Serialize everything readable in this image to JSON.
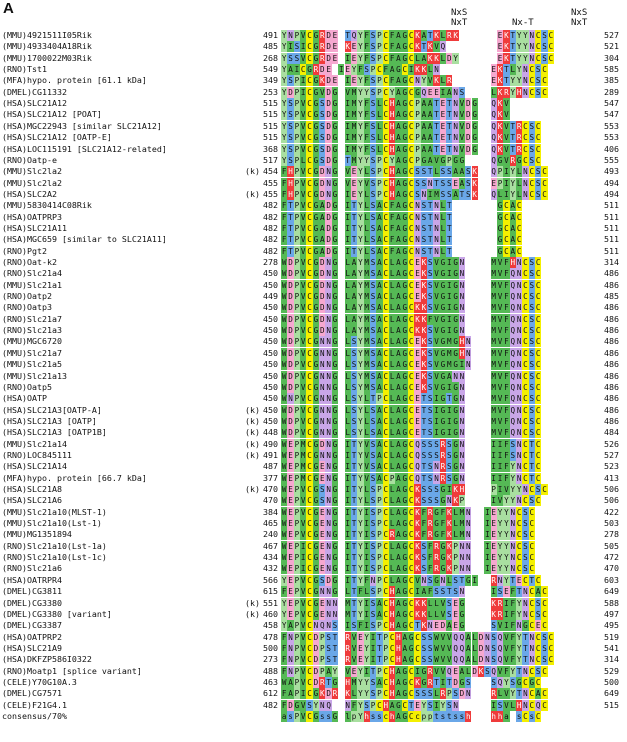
{
  "panel_label": "A",
  "motif_headers": {
    "nxs1": "NxS",
    "nxt1": "NxT",
    "nxt_mid": "Nx-T",
    "nxs2": "NxS",
    "nxt2": "NxT"
  },
  "colors": {
    "green": "#55b955",
    "yellow": "#f4f000",
    "blue": "#6aa7e8",
    "purple": "#c9a6e8",
    "pink": "#f6a8d0",
    "red": "#ef3b3b",
    "lightgreen": "#a9dfa0"
  },
  "rows": [
    {
      "name": "(MMU)4921511I05Rik",
      "k": "",
      "start": "491",
      "seq": "YNPVCGRDE TQYFSPCFAGCKATKLRK      EKTYYNCSC",
      "end": "527"
    },
    {
      "name": "(MMU)4933404A18Rik",
      "k": "",
      "start": "485",
      "seq": "YISICGRDE KEYFSPCFAGCKTKVQ        EKTYYNCSC",
      "end": "521"
    },
    {
      "name": "(MMU)1700022M03Rik",
      "k": "",
      "start": "268",
      "seq": "YSSVCGRDE IEYFSPCFAGCLAKKLDY      EKTYYNCSC",
      "end": "304"
    },
    {
      "name": "(RNO)Tst1",
      "k": "",
      "start": "549",
      "seq": "YAICGRDE IEYFSPCFAGCIKKLN        EKTLYNCSC",
      "end": "585"
    },
    {
      "name": "(MFA)hypo. protein [61.1 kDa]",
      "k": "",
      "start": "349",
      "seq": "YSPICGKDE IEYFSPCFAGCNYVKLR      EKTYYNCSC",
      "end": "385"
    },
    {
      "name": "(DMEL)CG11332",
      "k": "",
      "start": "253",
      "seq": "YDPICGVDG VMYYSPCYAGCGQEEIANS    LKRYHNCSC",
      "end": "289"
    },
    {
      "name": "(HSA)SLC21A12",
      "k": "",
      "start": "515",
      "seq": "YSPVCGSDG IMYFSLCHAGCPAATETNVDG  QKV",
      "end": "547"
    },
    {
      "name": "(HSA)SLC21A12 [POAT]",
      "k": "",
      "start": "515",
      "seq": "YSPVCGSDG IMYFSLCHAGCPAATETNVDG  QKV",
      "end": "547"
    },
    {
      "name": "(HSA)MGC22943 [similar SLC21A12]",
      "k": "",
      "start": "515",
      "seq": "YSPVCGSDG IMYFSLCHAGCPAATETNVDG  QKVTRCSC",
      "end": "553"
    },
    {
      "name": "(HSA)SLC21A12 [OATP-E]",
      "k": "",
      "start": "515",
      "seq": "YSPVCGSDG IMYFSLCHAGCPAATETNVDG  QKVTRCSC",
      "end": "553"
    },
    {
      "name": "(HSA)LOC115191 [SLC21A12-related]",
      "k": "",
      "start": "368",
      "seq": "YSPVCGSDG IMYFSLCHAGCPAATETNVDG  QKVTRCSC",
      "end": "406"
    },
    {
      "name": "(RNO)Oatp-e",
      "k": "",
      "start": "517",
      "seq": "YSPLCGSDG TMYYSPCYAGCPGAVGPGG    QGVRGCSC",
      "end": "555"
    },
    {
      "name": "(MMU)Slc2la2",
      "k": "(k)",
      "start": "454",
      "seq": "FHPVCGDNG VEYLSPCHAGCSSTLSSAASK  QPIYLNCSC",
      "end": "493"
    },
    {
      "name": "(MMU)Slc2la2",
      "k": "",
      "start": "455",
      "seq": "FHPVCGDNG VEYVSPCHAGCSSNTSSEASK  EPIYLNCSC",
      "end": "494"
    },
    {
      "name": "(HSA)SLC2A2",
      "k": "(k)",
      "start": "455",
      "seq": "FHPVCGDNG IEYLSPCHAGCSNIMSSATSK  QLIYLNCSC",
      "end": "494"
    },
    {
      "name": "(MMU)5830414C08Rik",
      "k": "",
      "start": "482",
      "seq": "FTPVCGADG ITYLSACFAGCNSTNLT       GCAC",
      "end": "511"
    },
    {
      "name": "(HSA)OATPRP3",
      "k": "",
      "start": "482",
      "seq": "FTPVCGADG ITYLSACFAGCNSTNLT       GCAC",
      "end": "511"
    },
    {
      "name": "(HSA)SLC21A11",
      "k": "",
      "start": "482",
      "seq": "FTPVCGADG ITYLSACFAGCNSTNLT       GCAC",
      "end": "511"
    },
    {
      "name": "(HSA)MGC659 [similar to SLC21A11]",
      "k": "",
      "start": "482",
      "seq": "FTPVCGADG ITYLSACFAGCNSTNLT       GCAC",
      "end": "511"
    },
    {
      "name": "(RNO)Pgt2",
      "k": "",
      "start": "482",
      "seq": "FTPVCGADG ITYLSACFAGCNSTNLT       GCAC",
      "end": "511"
    },
    {
      "name": "(RNO)Oat-k2",
      "k": "",
      "start": "278",
      "seq": "WDPVCGDNG LAYMSACLAGCEKSVGIGN    MVFHNCSC",
      "end": "314"
    },
    {
      "name": "(RNO)Slc21a4",
      "k": "",
      "start": "450",
      "seq": "WDPVCGDNG LAYMSACLAGCEKSVGIGN    MVFQNCSC",
      "end": "486"
    },
    {
      "name": "(MMU)Slc21a1",
      "k": "",
      "start": "450",
      "seq": "WDPVCGDNG LAYMSACLAGCEKSVGIGN    MVFQNCSC",
      "end": "486"
    },
    {
      "name": "(RNO)Oatp2",
      "k": "",
      "start": "449",
      "seq": "WDPVCGDNG LAYMSACLAGCEKSVGIGN    MVFQNCSC",
      "end": "485"
    },
    {
      "name": "(RNO)Oatp3",
      "k": "",
      "start": "450",
      "seq": "WDPVCGDNG LAYMSACLAGCKKSVGIGN    MVFQNCSC",
      "end": "486"
    },
    {
      "name": "(RNO)Slc21a7",
      "k": "",
      "start": "450",
      "seq": "WDPVCGDNG LAYMSACLAGCKKFVGIGN    MVFQNCSC",
      "end": "486"
    },
    {
      "name": "(RNO)Slc21a3",
      "k": "",
      "start": "450",
      "seq": "WDPVCGDNG LAYMSACLAGCKKSVGIGN    MVFQNCSC",
      "end": "486"
    },
    {
      "name": "(MMU)MGC6720",
      "k": "",
      "start": "450",
      "seq": "WDPVCGNNG LSYMSACLAGCEKSVGMGHN   MVFQNCSC",
      "end": "486"
    },
    {
      "name": "(MMU)Slc21a7",
      "k": "",
      "start": "450",
      "seq": "WDPVCGNNG LSYMSACLAGCEKSVGMGHN   MVFQNCSC",
      "end": "486"
    },
    {
      "name": "(MMU)Slc21a5",
      "k": "",
      "start": "450",
      "seq": "WDPVCGNNG LSYMSACLAGCEKSVGMGIN   MVFQNCSC",
      "end": "486"
    },
    {
      "name": "(MMU)Slc21a13",
      "k": "",
      "start": "450",
      "seq": "WDPVCGNNG LSYMSACLAGCEKSVGANN    MVFQNCSC",
      "end": "486"
    },
    {
      "name": "(RNO)Oatp5",
      "k": "",
      "start": "450",
      "seq": "WDPVCGNNG LSYMSACLAGCEKSVGIGN    MVFQNCSC",
      "end": "486"
    },
    {
      "name": "(HSA)OATP",
      "k": "",
      "start": "450",
      "seq": "WNPVCGNNG LSYLTPCLAGCETSIGTGN    MVFQNCSC",
      "end": "486"
    },
    {
      "name": "(HSA)SLC21A3[OATP-A]",
      "k": "(k)",
      "start": "450",
      "seq": "WDPVCGNNG LSYLSACLAGCETSIGIGN    MVFQNCSC",
      "end": "486"
    },
    {
      "name": "(HSA)SLC21A3 [OATP]",
      "k": "(k)",
      "start": "450",
      "seq": "WDPVCGNNG LSYLSACLAGCETSIGIGN    MVFQNCSC",
      "end": "486"
    },
    {
      "name": "(HSA)SLC21A3 [OATP1B]",
      "k": "(k)",
      "start": "448",
      "seq": "WDPVCGNNG LSYLSACLAGCETSIGIGN    MVFQNCSC",
      "end": "484"
    },
    {
      "name": "(MMU)Slc21a14",
      "k": "(k)",
      "start": "490",
      "seq": "WEPMCGDNG ITYVSACLAGCQSSSRSGN    IIFSNCTC",
      "end": "526"
    },
    {
      "name": "(RNO)LOC845111",
      "k": "(k)",
      "start": "491",
      "seq": "WEPMCGNNG ITYVSACLAGCQSSSRSGN    IIFSNCTC",
      "end": "527"
    },
    {
      "name": "(HSA)SLC21A14",
      "k": "",
      "start": "487",
      "seq": "WEPMCGENG ITYVSACLAGCQTSNRSGN    IIFYNCTC",
      "end": "523"
    },
    {
      "name": "(MFA)hypo. protein [66.7 kDa]",
      "k": "",
      "start": "377",
      "seq": "WEPMCGENG ITYVSACPAGCQTSNRSGN    IIFYNCTC",
      "end": "413"
    },
    {
      "name": "(HSA)SLC21A8",
      "k": "(k)",
      "start": "470",
      "seq": "WEPVCGSNG ITYLSPCLAGCKSSSGIKH    PIVYYNCSC",
      "end": "506"
    },
    {
      "name": "(HSA)SLC21A6",
      "k": "",
      "start": "470",
      "seq": "WEPVCGSNG ITYLSPCLAGCKSSSGNKP    IVYYNCSC",
      "end": "506"
    },
    {
      "name": "(MMU)Slc21a10(MLST-1)",
      "k": "",
      "start": "384",
      "seq": "WEPVCGENG ITYISPCLAGCKFRGFKLMN  IEYYNCSC",
      "end": "422"
    },
    {
      "name": "(MMU)Slc21a10(Lst-1)",
      "k": "",
      "start": "465",
      "seq": "WEPVCGENG ITYISPCLAGCKFRGFKLMN  IEYYNCSC",
      "end": "503"
    },
    {
      "name": "(MMU)MG1351894",
      "k": "",
      "start": "240",
      "seq": "WEPVCGENG ITYISPCRAGCKFRGFKLMN  IEYYNCSC",
      "end": "278"
    },
    {
      "name": "(RNO)Slc21a10(Lst-1a)",
      "k": "",
      "start": "467",
      "seq": "WEPICGENG ITYISPCLAGCKSFRGKPNN  IEYYNCSC",
      "end": "505"
    },
    {
      "name": "(RNO)Slc21a10(Lst-1c)",
      "k": "",
      "start": "434",
      "seq": "WEPICGENG ITYISPCLAGCKSFRGKPNN  IEYYNCSC",
      "end": "472"
    },
    {
      "name": "(RNO)Slc21a6",
      "k": "",
      "start": "432",
      "seq": "WEPICGENG ITYISPCLAGCKSFRGKPNN  IEYYNCSC",
      "end": "470"
    },
    {
      "name": "(HSA)OATRPR4",
      "k": "",
      "start": "566",
      "seq": "YEPVCGSDG ITYFNPCLAGCVNSGNLSTGI  RNYTECTC",
      "end": "603"
    },
    {
      "name": "(DMEL)CG3811",
      "k": "",
      "start": "615",
      "seq": "FEPVCGNNG LTFLSPCHAGCIAFSSTSN    ISEFTNCAC",
      "end": "649"
    },
    {
      "name": "(DMEL)CG3380",
      "k": "(k)",
      "start": "551",
      "seq": "YEPVCGENN MTYISACHAGCKKLLVSEG    KRIFYNCSC",
      "end": "588"
    },
    {
      "name": "(DMEL)CG3380 [variant]",
      "k": "(k)",
      "start": "460",
      "seq": "YEPVCGENN MTYISACHAGCKKLLVSEG    KRIFYNCSC",
      "end": "497"
    },
    {
      "name": "(DMEL)CG3387",
      "k": "",
      "start": "458",
      "seq": "YAPVCNQNS ISFISPCHAGCTKNEDAEG    SVIFNGCEC",
      "end": "495"
    },
    {
      "name": "(HSA)OATPRP2",
      "k": "",
      "start": "478",
      "seq": "FNPVCDPST RVEYITPCHAGCSSWVVQQALDNSQVFYTNCSC",
      "end": "519"
    },
    {
      "name": "(HSA)SLC21A9",
      "k": "",
      "start": "500",
      "seq": "FNPVCDPST RVEYITPCHAGCSSWVVQQALDNSQVFYTNCSC",
      "end": "541"
    },
    {
      "name": "(HSA)DKFZP586I0322",
      "k": "",
      "start": "273",
      "seq": "FNPVCDPST RVEYITPCHAGCSSWVVQQALDNSQVFYTNCSC",
      "end": "314"
    },
    {
      "name": "(RNO)Moatp1 [splice variant]",
      "k": "",
      "start": "488",
      "seq": "FNPVCDPAY VEYITPCHAGCIGRVVQEALDKSQVFYTNCSC",
      "end": "529"
    },
    {
      "name": "(CELE)Y70G10A.3",
      "k": "",
      "start": "463",
      "seq": "WAPVCDRTG HMYYSACHAGCKGRTITDGS   SQYSGCGC",
      "end": "500"
    },
    {
      "name": "(DMEL)CG7571",
      "k": "",
      "start": "612",
      "seq": "FAPICGKDR KLYYSPCHAGCSSSLRPSDN   RLVYTNCAC",
      "end": "649"
    },
    {
      "name": "(CELE)F21G4.1",
      "k": "",
      "start": "482",
      "seq": "FDGVSYNQ  NFYSPCHAGCTEYSIYSN     ISVLHNCQC",
      "end": "515"
    },
    {
      "name": "consensus/70%",
      "k": "",
      "start": "",
      "seq": "asPVCGssG lpYhsschAGCcpptstssh   hha sCsC",
      "end": ""
    }
  ]
}
